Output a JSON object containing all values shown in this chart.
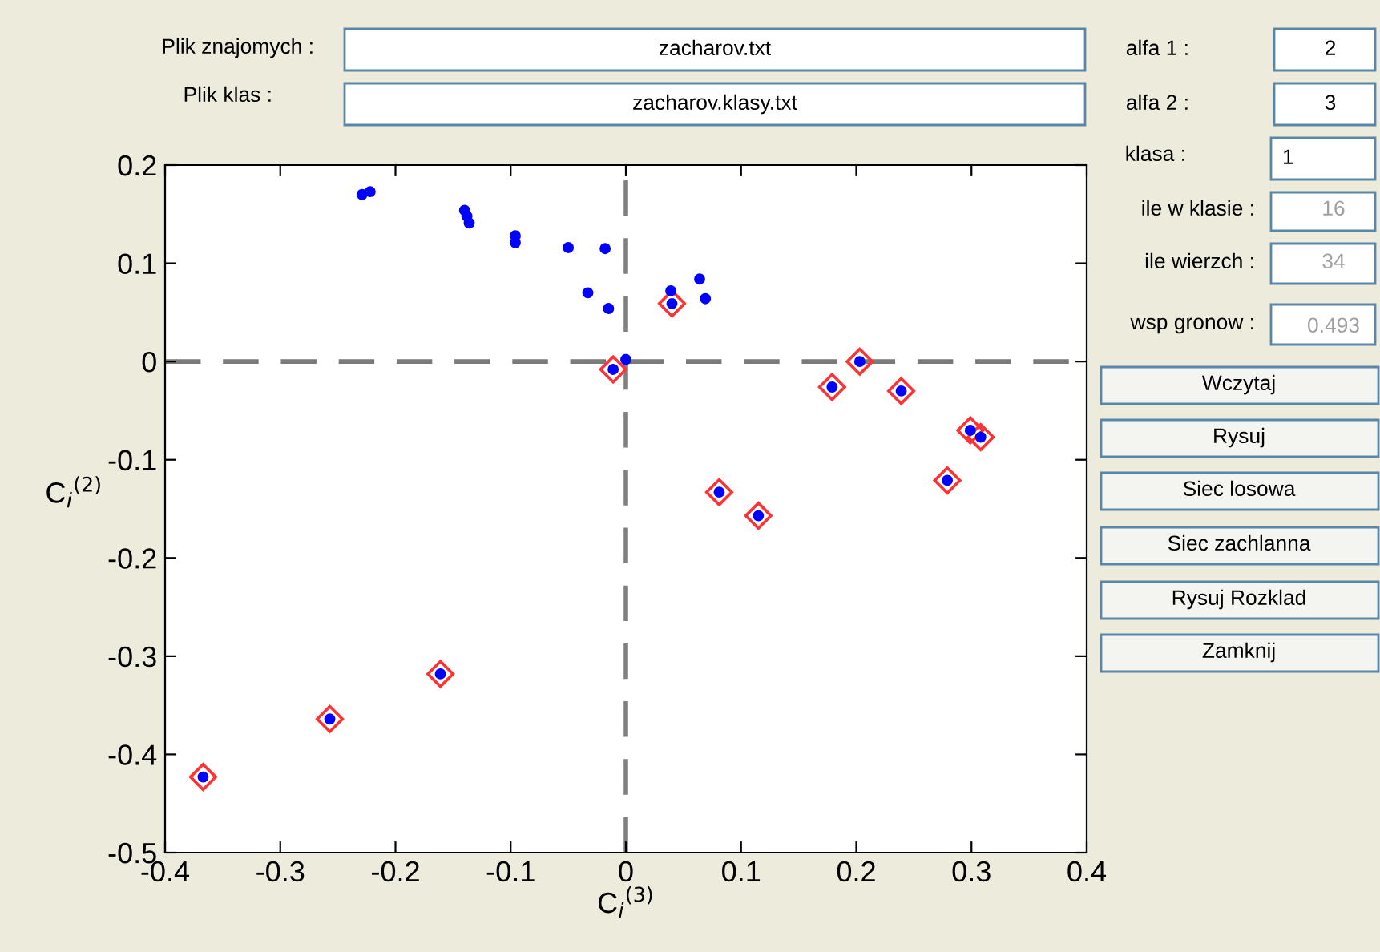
{
  "chart_data": {
    "type": "scatter",
    "xlabel": "C$_{i}$$^{(3)}$",
    "ylabel": "C$_{i}$$^{(2)}$",
    "xlim": [
      -0.4,
      0.4
    ],
    "ylim": [
      -0.5,
      0.2
    ],
    "xticks": [
      -0.4,
      -0.3,
      -0.2,
      -0.1,
      0,
      0.1,
      0.2,
      0.3,
      0.4
    ],
    "yticks": [
      -0.5,
      -0.4,
      -0.3,
      -0.2,
      -0.1,
      0,
      0.1,
      0.2
    ],
    "ref_lines": [
      {
        "axis": "x",
        "value": 0,
        "color": "#808080",
        "line_style": "dashed"
      },
      {
        "axis": "y",
        "value": 0,
        "color": "#7a7a7a",
        "line_style": "dashed"
      }
    ],
    "series": [
      {
        "color": "#0000ff",
        "marker": "circle",
        "x": [
          -0.229,
          -0.222,
          -0.14,
          -0.138,
          -0.136,
          -0.096,
          -0.096,
          -0.05,
          -0.018,
          -0.033,
          -0.015,
          0.0,
          0.039,
          0.064,
          0.069,
          -0.011,
          0.04,
          0.203,
          0.179,
          0.239,
          0.299,
          0.308,
          0.279,
          0.081,
          0.115,
          -0.367,
          -0.257,
          -0.161
        ],
        "values": [
          0.17,
          0.173,
          0.154,
          0.148,
          0.141,
          0.128,
          0.121,
          0.116,
          0.115,
          0.07,
          0.054,
          0.002,
          0.072,
          0.084,
          0.064,
          -0.008,
          0.059,
          0.0,
          -0.026,
          -0.03,
          -0.07,
          -0.077,
          -0.121,
          -0.133,
          -0.157,
          -0.423,
          -0.364,
          -0.318
        ]
      },
      {
        "color": "#ff3333",
        "marker": "diamond",
        "x": [
          -0.011,
          0.04,
          0.203,
          0.179,
          0.239,
          0.299,
          0.308,
          0.279,
          0.081,
          0.115,
          -0.367,
          -0.257,
          -0.161
        ],
        "values": [
          -0.008,
          0.059,
          0.0,
          -0.026,
          -0.03,
          -0.07,
          -0.077,
          -0.121,
          -0.133,
          -0.157,
          -0.423,
          -0.364,
          -0.318
        ]
      }
    ],
    "annotations": [
      "Plik znajomych :",
      "zacharov.txt",
      "Plik klas :",
      "zacharov.klasy.txt",
      "alfa 1 :",
      "2",
      "alfa 2 :",
      "3",
      "klasa :",
      "1",
      "ile w klasie :",
      "16",
      "ile wierzch :",
      "34",
      "wsp gronow :",
      "0.493",
      "Wczytaj",
      "Rysuj",
      "Siec losowa",
      "Siec zachlanna",
      "Rysuj Rozklad",
      "Zamknij"
    ]
  }
}
